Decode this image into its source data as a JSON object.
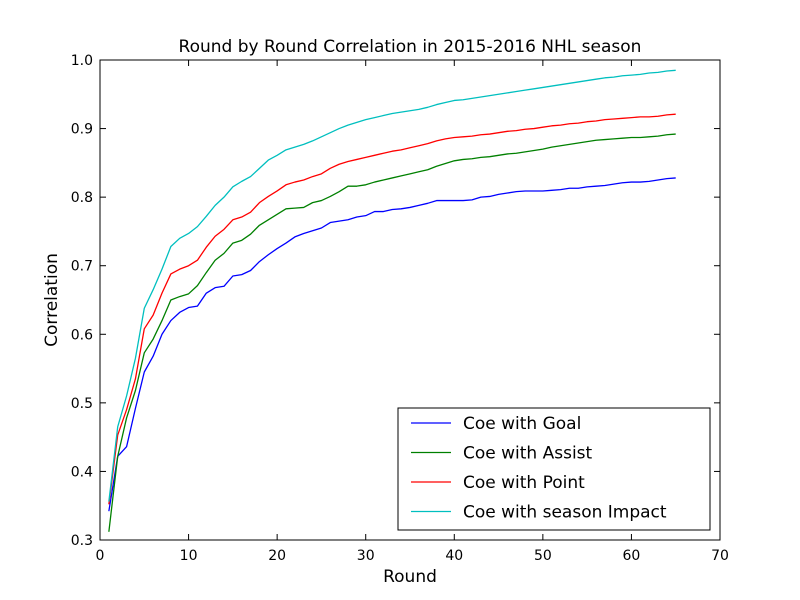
{
  "chart_data": {
    "type": "line",
    "title": "Round by Round Correlation in 2015-2016 NHL season",
    "xlabel": "Round",
    "ylabel": "Correlation",
    "xlim": [
      0,
      70
    ],
    "ylim": [
      0.3,
      1.0
    ],
    "xticks": [
      0,
      10,
      20,
      30,
      40,
      50,
      60,
      70
    ],
    "yticks": [
      0.3,
      0.4,
      0.5,
      0.6,
      0.7,
      0.8,
      0.9,
      1.0
    ],
    "xtick_labels": [
      "0",
      "10",
      "20",
      "30",
      "40",
      "50",
      "60",
      "70"
    ],
    "ytick_labels": [
      "0.3",
      "0.4",
      "0.5",
      "0.6",
      "0.7",
      "0.8",
      "0.9",
      "1.0"
    ],
    "grid": false,
    "legend_position": "lower-right",
    "x_start": 1,
    "series": [
      {
        "name": "Coe with Goal",
        "color": "#0000ff",
        "values": [
          0.342,
          0.422,
          0.436,
          0.492,
          0.545,
          0.568,
          0.6,
          0.62,
          0.632,
          0.639,
          0.641,
          0.66,
          0.668,
          0.67,
          0.685,
          0.687,
          0.693,
          0.706,
          0.716,
          0.725,
          0.733,
          0.742,
          0.747,
          0.751,
          0.755,
          0.763,
          0.765,
          0.767,
          0.771,
          0.773,
          0.779,
          0.779,
          0.782,
          0.783,
          0.785,
          0.788,
          0.791,
          0.795,
          0.795,
          0.795,
          0.795,
          0.796,
          0.8,
          0.801,
          0.804,
          0.806,
          0.808,
          0.809,
          0.809,
          0.809,
          0.81,
          0.811,
          0.813,
          0.813,
          0.815,
          0.816,
          0.817,
          0.819,
          0.821,
          0.822,
          0.822,
          0.823,
          0.825,
          0.827,
          0.828
        ]
      },
      {
        "name": "Coe with Assist",
        "color": "#008000",
        "values": [
          0.312,
          0.422,
          0.478,
          0.518,
          0.573,
          0.593,
          0.62,
          0.65,
          0.655,
          0.659,
          0.671,
          0.69,
          0.708,
          0.718,
          0.733,
          0.737,
          0.746,
          0.759,
          0.767,
          0.775,
          0.783,
          0.784,
          0.785,
          0.792,
          0.795,
          0.801,
          0.808,
          0.816,
          0.816,
          0.818,
          0.822,
          0.825,
          0.828,
          0.831,
          0.834,
          0.837,
          0.84,
          0.845,
          0.849,
          0.853,
          0.855,
          0.856,
          0.858,
          0.859,
          0.861,
          0.863,
          0.864,
          0.866,
          0.868,
          0.87,
          0.873,
          0.875,
          0.877,
          0.879,
          0.881,
          0.883,
          0.884,
          0.885,
          0.886,
          0.887,
          0.887,
          0.888,
          0.889,
          0.891,
          0.892
        ]
      },
      {
        "name": "Coe with Point",
        "color": "#ff0000",
        "values": [
          0.352,
          0.453,
          0.49,
          0.535,
          0.608,
          0.628,
          0.66,
          0.688,
          0.695,
          0.7,
          0.708,
          0.727,
          0.743,
          0.753,
          0.767,
          0.771,
          0.778,
          0.792,
          0.801,
          0.809,
          0.818,
          0.822,
          0.825,
          0.83,
          0.834,
          0.842,
          0.848,
          0.852,
          0.855,
          0.858,
          0.861,
          0.864,
          0.867,
          0.869,
          0.872,
          0.875,
          0.878,
          0.882,
          0.885,
          0.887,
          0.888,
          0.889,
          0.891,
          0.892,
          0.894,
          0.896,
          0.897,
          0.899,
          0.9,
          0.902,
          0.904,
          0.905,
          0.907,
          0.908,
          0.91,
          0.911,
          0.913,
          0.914,
          0.915,
          0.916,
          0.917,
          0.917,
          0.918,
          0.92,
          0.921
        ]
      },
      {
        "name": "Coe with season Impact",
        "color": "#00bfbf",
        "values": [
          0.356,
          0.465,
          0.51,
          0.565,
          0.638,
          0.665,
          0.695,
          0.728,
          0.74,
          0.747,
          0.757,
          0.772,
          0.788,
          0.8,
          0.815,
          0.823,
          0.83,
          0.842,
          0.854,
          0.861,
          0.869,
          0.873,
          0.877,
          0.882,
          0.888,
          0.894,
          0.9,
          0.905,
          0.909,
          0.913,
          0.916,
          0.919,
          0.922,
          0.924,
          0.926,
          0.928,
          0.931,
          0.935,
          0.938,
          0.941,
          0.942,
          0.944,
          0.946,
          0.948,
          0.95,
          0.952,
          0.954,
          0.956,
          0.958,
          0.96,
          0.962,
          0.964,
          0.966,
          0.968,
          0.97,
          0.972,
          0.974,
          0.975,
          0.977,
          0.978,
          0.979,
          0.981,
          0.982,
          0.984,
          0.985
        ]
      }
    ]
  }
}
